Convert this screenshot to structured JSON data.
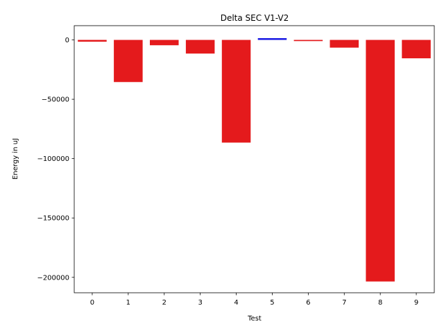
{
  "chart_data": {
    "type": "bar",
    "title": "Delta SEC V1-V2",
    "xlabel": "Test",
    "ylabel": "Energy in uJ",
    "categories": [
      "0",
      "1",
      "2",
      "3",
      "4",
      "5",
      "6",
      "7",
      "8",
      "9"
    ],
    "values": [
      -1500,
      -35500,
      -4500,
      -11500,
      -86500,
      1500,
      -1000,
      -6500,
      -203500,
      -15500
    ],
    "bar_colors": [
      "#e41a1c",
      "#e41a1c",
      "#e41a1c",
      "#e41a1c",
      "#e41a1c",
      "#1a1ae4",
      "#e41a1c",
      "#e41a1c",
      "#e41a1c",
      "#e41a1c"
    ],
    "ylim": [
      -213000,
      12000
    ],
    "yticks": [
      0,
      -50000,
      -100000,
      -150000,
      -200000
    ],
    "ytick_labels": [
      "0",
      "−50000",
      "−100000",
      "−150000",
      "−200000"
    ],
    "grid": false,
    "legend": "none"
  }
}
